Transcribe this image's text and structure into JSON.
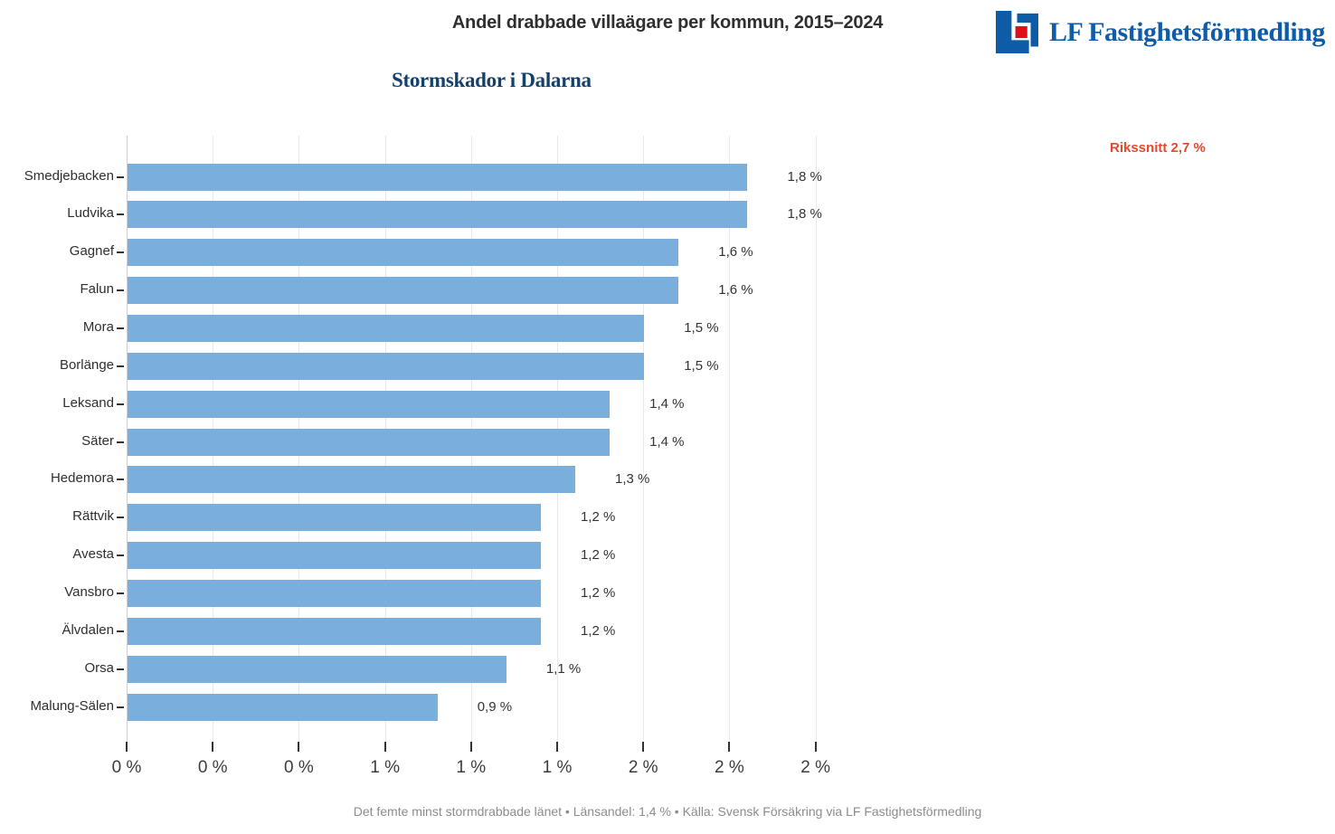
{
  "header": {
    "title": "Andel drabbade villaägare per kommun, 2015–2024",
    "brand": {
      "name": "LF Fastighetsförmedling",
      "logo_blue": "#0e5ca6",
      "logo_red": "#e00d1a"
    }
  },
  "annotation": {
    "label": "Rikssnitt 2,7 %",
    "color": "#e6492d"
  },
  "chart_data": {
    "type": "bar",
    "orientation": "horizontal",
    "title": "Stormskador i Dalarna",
    "categories": [
      "Smedjebacken",
      "Ludvika",
      "Gagnef",
      "Falun",
      "Mora",
      "Borlänge",
      "Leksand",
      "Säter",
      "Hedemora",
      "Rättvik",
      "Avesta",
      "Vansbro",
      "Älvdalen",
      "Orsa",
      "Malung-Sälen"
    ],
    "values": [
      1.8,
      1.8,
      1.6,
      1.6,
      1.5,
      1.5,
      1.4,
      1.4,
      1.3,
      1.2,
      1.2,
      1.2,
      1.2,
      1.1,
      0.9
    ],
    "value_labels": [
      "1,8 %",
      "1,8 %",
      "1,6 %",
      "1,6 %",
      "1,5 %",
      "1,5 %",
      "1,4 %",
      "1,4 %",
      "1,3 %",
      "1,2 %",
      "1,2 %",
      "1,2 %",
      "1,2 %",
      "1,1 %",
      "0,9 %"
    ],
    "bar_color": "#7aaedc",
    "xlabel": "",
    "ylabel": "",
    "xlim": [
      0,
      2.16
    ],
    "x_ticks": [
      0,
      0.25,
      0.5,
      0.75,
      1.0,
      1.25,
      1.5,
      1.75,
      2.0
    ],
    "x_tick_labels": [
      "0 %",
      "0 %",
      "0 %",
      "1 %",
      "1 %",
      "1 %",
      "2 %",
      "2 %",
      "2 %"
    ],
    "grid": "vertical",
    "legend": "none",
    "reference_value_national": "2,7 %"
  },
  "footer": {
    "text": "Det femte minst stormdrabbade länet  •  Länsandel: 1,4 %  •  Källa: Svensk Försäkring via LF Fastighetsförmedling"
  }
}
